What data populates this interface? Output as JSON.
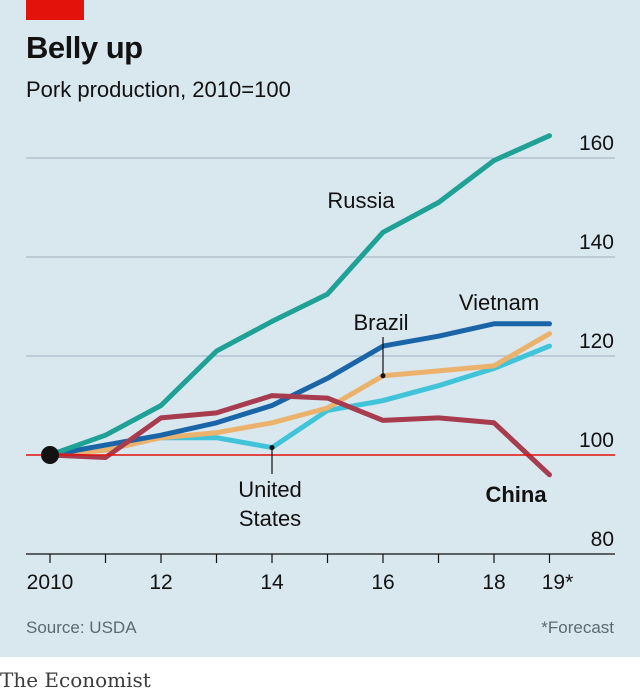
{
  "header": {
    "title": "Belly up",
    "subtitle": "Pork production, 2010=100"
  },
  "footer": {
    "source": "Source: USDA",
    "note": "*Forecast",
    "brand": "The Economist"
  },
  "colors": {
    "background": "#d9e7ef",
    "accent_red": "#e3120b",
    "Russia": "#1fa196",
    "Vietnam": "#1a65a8",
    "Brazil": "#ebb26c",
    "United States": "#3fc4d9",
    "China": "#a73c4f"
  },
  "chart_data": {
    "type": "line",
    "x": [
      2010,
      2011,
      2012,
      2013,
      2014,
      2015,
      2016,
      2017,
      2018,
      2019
    ],
    "x_tick_labels": [
      "2010",
      "12",
      "14",
      "16",
      "18",
      "19*"
    ],
    "x_tick_values": [
      2010,
      2012,
      2014,
      2016,
      2018,
      2019
    ],
    "y_ticks": [
      80,
      100,
      120,
      140,
      160
    ],
    "ylim": [
      80,
      165
    ],
    "baseline": 100,
    "y_axis_side": "right",
    "grid": true,
    "series": [
      {
        "name": "Russia",
        "values": [
          100,
          104,
          110,
          121,
          127,
          132.5,
          145,
          151,
          159.5,
          164.5
        ]
      },
      {
        "name": "Vietnam",
        "values": [
          100,
          102,
          104,
          106.5,
          110,
          115.5,
          122,
          124,
          126.5,
          126.5
        ]
      },
      {
        "name": "Brazil",
        "values": [
          100,
          101,
          103.5,
          104.5,
          106.5,
          109.5,
          116,
          117,
          118,
          124.5
        ]
      },
      {
        "name": "United States",
        "values": [
          100,
          102,
          103.5,
          103.5,
          101.5,
          109,
          111,
          114,
          117.5,
          122
        ]
      },
      {
        "name": "China",
        "values": [
          100,
          99.5,
          107.5,
          108.5,
          112,
          111.5,
          107,
          107.5,
          106.5,
          96
        ]
      }
    ],
    "labels": {
      "Russia": "Russia",
      "Vietnam": "Vietnam",
      "Brazil": "Brazil",
      "United States": [
        "United",
        "States"
      ],
      "China": "China"
    }
  }
}
